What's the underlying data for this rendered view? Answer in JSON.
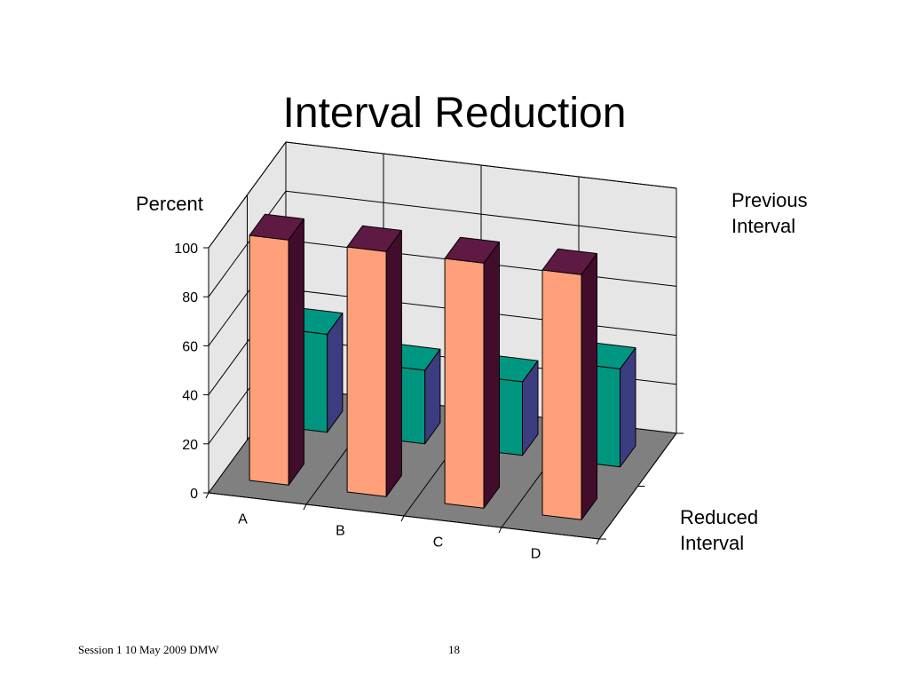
{
  "slide": {
    "title": "Interval Reduction",
    "footer_left": "Session 1 10 May 2009 DMW",
    "page_number": "18"
  },
  "chart_data": {
    "type": "bar",
    "title": "Interval Reduction",
    "ylabel": "Percent",
    "ylim": [
      0,
      100
    ],
    "yticks": [
      0,
      20,
      40,
      60,
      80,
      100
    ],
    "categories": [
      "A",
      "B",
      "C",
      "D"
    ],
    "series": [
      {
        "name": "Previous Interval",
        "values": [
          100,
          100,
          100,
          100
        ],
        "colors": {
          "front": "#ffa07a",
          "side": "#420d2b",
          "top": "#5e1a42"
        }
      },
      {
        "name": "Reduced Interval",
        "values": [
          40,
          30,
          30,
          40
        ],
        "colors": {
          "front": "#00957f",
          "side": "#3c3c80",
          "top": "#009782"
        }
      }
    ],
    "grid": true,
    "series_labels": [
      {
        "series": 0,
        "lines": [
          "Previous",
          "Interval"
        ]
      },
      {
        "series": 1,
        "lines": [
          "Reduced",
          "Interval"
        ]
      }
    ]
  }
}
